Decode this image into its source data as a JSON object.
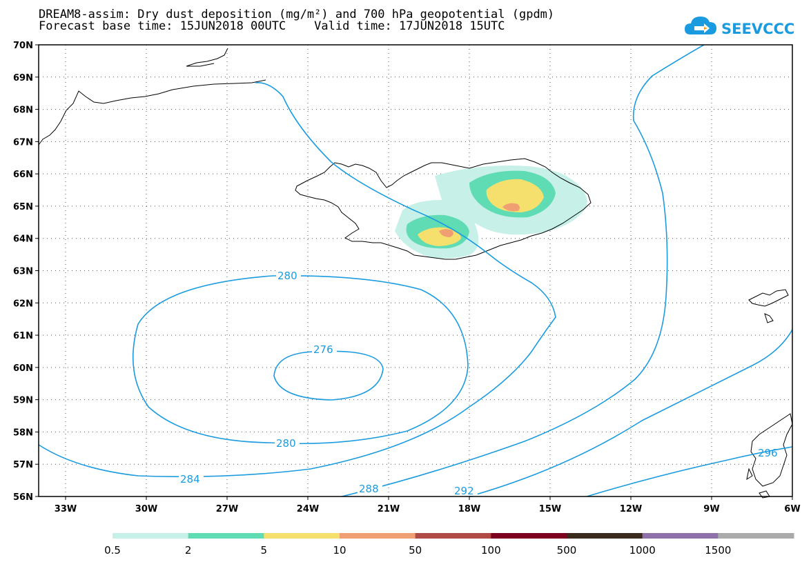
{
  "header": {
    "title_line1": "DREAM8-assim: Dry dust deposition (mg/m²) and 700 hPa geopotential (gpdm)",
    "title_line2": "Forecast base time: 15JUN2018 00UTC    Valid time: 17JUN2018 15UTC"
  },
  "logo": {
    "text": "SEEVCCC",
    "icon": "cloud-arrow-icon",
    "color": "#1a9be0"
  },
  "map": {
    "lat_labels": [
      "70N",
      "69N",
      "68N",
      "67N",
      "66N",
      "65N",
      "64N",
      "63N",
      "62N",
      "61N",
      "60N",
      "59N",
      "58N",
      "57N",
      "56N"
    ],
    "lon_labels": [
      "33W",
      "30W",
      "27W",
      "24W",
      "21W",
      "18W",
      "15W",
      "12W",
      "9W",
      "6W"
    ],
    "contour_color": "#1a9be0",
    "contour_labels": [
      "280",
      "276",
      "280",
      "284",
      "288",
      "292",
      "296"
    ],
    "dust_shading": true,
    "gridlines": "dotted"
  },
  "colorbar": {
    "labels": [
      "0.5",
      "2",
      "5",
      "10",
      "50",
      "100",
      "500",
      "1000",
      "1500"
    ],
    "colors": [
      "#c6f0e8",
      "#5fdcb4",
      "#f5e06e",
      "#ef9f72",
      "#b04a45",
      "#7d0020",
      "#3a2a1e",
      "#9070a8",
      "#aaaaaa"
    ]
  }
}
